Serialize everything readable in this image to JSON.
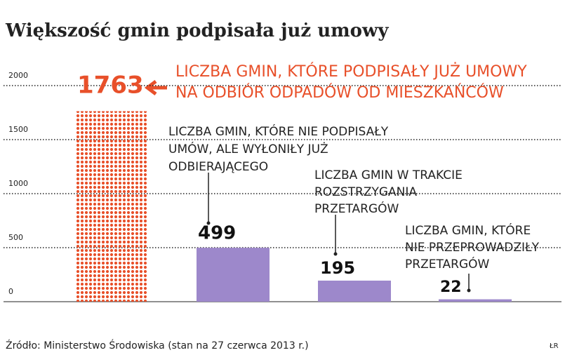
{
  "chart_data": {
    "type": "bar",
    "title": "Większość gmin podpisała już umowy",
    "categories": [
      [
        "LICZBA GMIN, KTÓRE PODPISAŁY JUŻ UMOWY",
        "NA ODBIÓR ODPADÓW OD MIESZKAŃCÓW"
      ],
      [
        "LICZBA GMIN, KTÓRE NIE PODPISAŁY",
        "UMÓW, ALE WYŁONIŁY JUŻ",
        "ODBIERAJĄCEGO"
      ],
      [
        "LICZBA GMIN W TRAKCIE",
        "ROZSTRZYGANIA",
        "PRZETARGÓW"
      ],
      [
        "LICZBA GMIN, KTÓRE",
        "NIE PRZEPROWADZIŁY",
        "PRZETARGÓW"
      ]
    ],
    "values": [
      1763,
      499,
      195,
      22
    ],
    "colors": [
      "#e8502a",
      "#9d88cb",
      "#9d88cb",
      "#9d88cb"
    ],
    "ylim": [
      0,
      2000
    ],
    "yticks": [
      0,
      500,
      1000,
      1500,
      2000
    ],
    "grid": true,
    "source": "Źródło: Ministerstwo Środowiska (stan na 27 czerwca 2013 r.)",
    "credit": "ŁR"
  }
}
